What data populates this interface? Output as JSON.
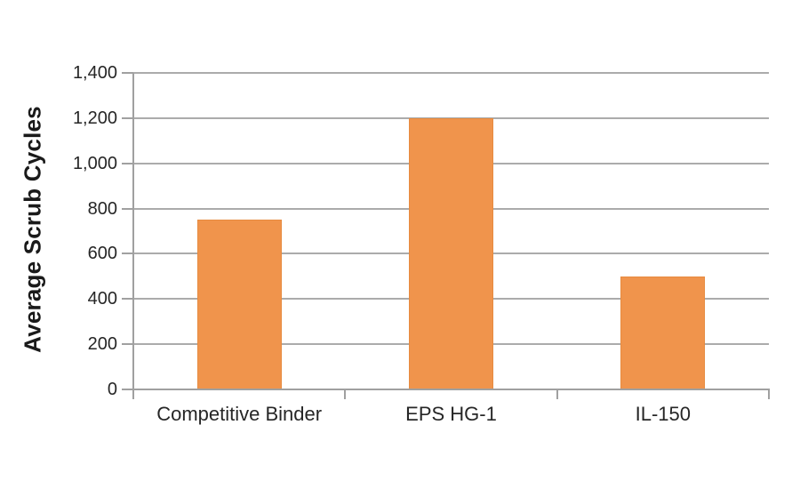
{
  "chart_data": {
    "type": "bar",
    "categories": [
      "Competitive Binder",
      "EPS HG-1",
      "IL-150"
    ],
    "values": [
      750,
      1200,
      500
    ],
    "title": "",
    "xlabel": "",
    "ylabel": "Average Scrub Cycles",
    "ylim": [
      0,
      1400
    ],
    "ytick_interval": 200,
    "ytick_labels": [
      "0",
      "200",
      "400",
      "600",
      "800",
      "1,000",
      "1,200",
      "1,400"
    ],
    "grid": true,
    "legend": "none",
    "colors": {
      "bar_fill": "#f0944c",
      "bar_border": "#e78b40",
      "gridline": "#ababab",
      "axis": "#a0a0a0",
      "tick_text": "#262626",
      "axis_title_text": "#1a1a1a",
      "background": "#ffffff"
    }
  }
}
